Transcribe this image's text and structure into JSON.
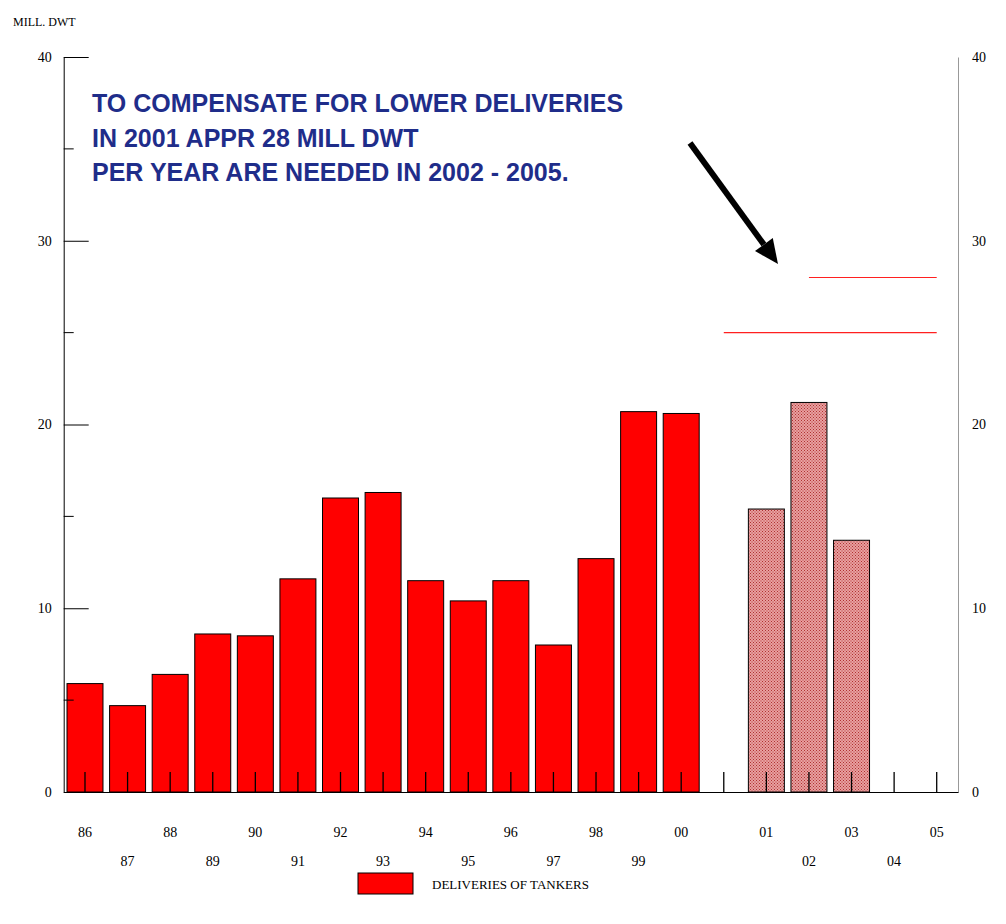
{
  "chart_data": {
    "type": "bar",
    "y_label": "MILL. DWT",
    "annotation": [
      "TO COMPENSATE FOR LOWER DELIVERIES",
      "IN 2001 APPR 28 MILL DWT",
      "PER YEAR ARE NEEDED IN 2002 - 2005."
    ],
    "categories": [
      "86",
      "87",
      "88",
      "89",
      "90",
      "91",
      "92",
      "93",
      "94",
      "95",
      "96",
      "97",
      "98",
      "99",
      "00",
      null,
      "01",
      "02",
      "03",
      "04",
      "05"
    ],
    "series": [
      {
        "name": "DELIVERIES OF TANKERS",
        "color": "#ff0000",
        "values": [
          5.9,
          4.7,
          6.4,
          8.6,
          8.5,
          11.6,
          16,
          16.3,
          11.5,
          10.4,
          11.5,
          8,
          12.7,
          20.7,
          20.6,
          null,
          null,
          null,
          null,
          null,
          null
        ]
      },
      {
        "color": "#e8a0a0",
        "marker": "hatch",
        "values": [
          null,
          null,
          null,
          null,
          null,
          null,
          null,
          null,
          null,
          null,
          null,
          null,
          null,
          null,
          null,
          null,
          15.4,
          21.2,
          13.7,
          null,
          null
        ]
      }
    ],
    "reference_lines": [
      {
        "value": 28,
        "x": [
          17,
          20
        ]
      },
      {
        "value": 25,
        "x": [
          15,
          20
        ]
      }
    ],
    "ylim": [
      0,
      40
    ],
    "yticks": [
      0,
      10,
      20,
      30,
      40
    ],
    "minor_yticks": [
      5,
      15,
      25,
      35
    ],
    "legend": "bottom"
  }
}
